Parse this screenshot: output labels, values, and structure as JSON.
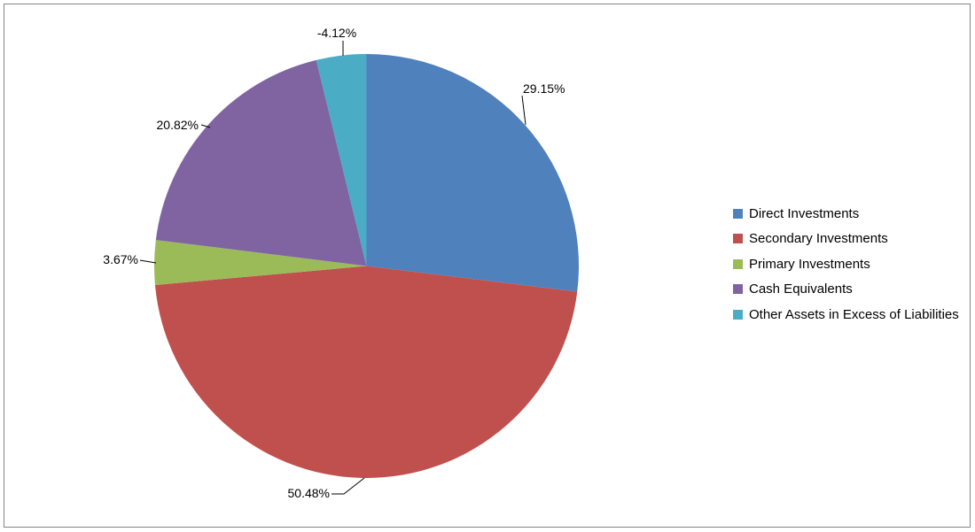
{
  "chart_data": {
    "type": "pie",
    "title": "",
    "legend_position": "right",
    "start_angle_deg": 0,
    "direction": "clockwise",
    "negative_values_rendered_as_absolute": true,
    "slices": [
      {
        "name": "Direct Investments",
        "value": 29.15,
        "label": "29.15%",
        "color": "#4F81BD"
      },
      {
        "name": "Secondary Investments",
        "value": 50.48,
        "label": "50.48%",
        "color": "#C0504D"
      },
      {
        "name": "Primary Investments",
        "value": 3.67,
        "label": "3.67%",
        "color": "#9BBB59"
      },
      {
        "name": "Cash Equivalents",
        "value": 20.82,
        "label": "20.82%",
        "color": "#8064A2"
      },
      {
        "name": "Other Assets in Excess of Liabilities",
        "value": -4.12,
        "label": "-4.12%",
        "color": "#4BACC6"
      }
    ]
  },
  "frame": {
    "border_color": "#858585",
    "background": "#FFFFFF"
  }
}
